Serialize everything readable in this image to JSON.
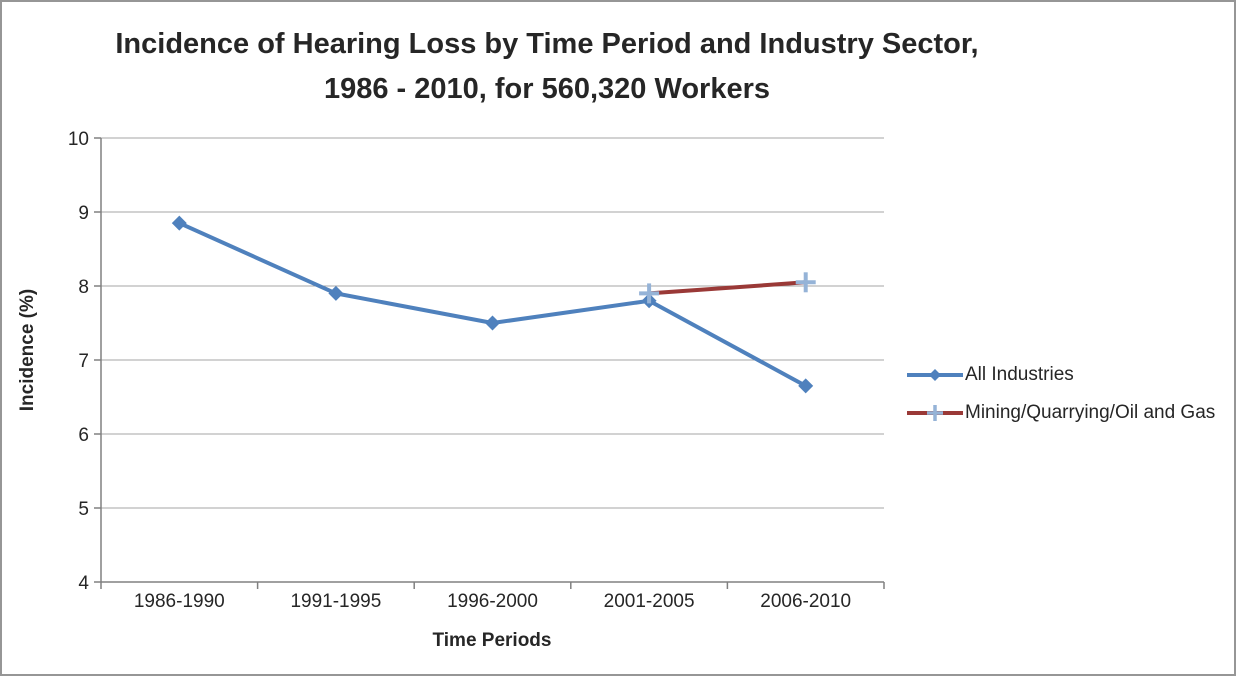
{
  "title": {
    "line1": "Incidence of Hearing Loss by Time Period and Industry Sector,",
    "line2": "1986 - 2010, for 560,320 Workers"
  },
  "axes": {
    "x_title": "Time Periods",
    "y_title": "Incidence (%)"
  },
  "chart_data": {
    "type": "line",
    "title": "Incidence of Hearing Loss by Time Period and Industry Sector, 1986 - 2010, for 560,320 Workers",
    "xlabel": "Time Periods",
    "ylabel": "Incidence (%)",
    "categories": [
      "1986-1990",
      "1991-1995",
      "1996-2000",
      "2001-2005",
      "2006-2010"
    ],
    "series": [
      {
        "name": "All Industries",
        "values": [
          8.85,
          7.9,
          7.5,
          7.8,
          6.65
        ],
        "color": "#4F81BD",
        "marker": "diamond",
        "marker_color": "#4F81BD"
      },
      {
        "name": "Mining/Quarrying/Oil and Gas",
        "values": [
          null,
          null,
          null,
          7.9,
          8.05
        ],
        "color": "#9A3937",
        "marker": "plus",
        "marker_color": "#95B3D7"
      }
    ],
    "ylim": [
      4,
      10
    ],
    "ytick_step": 1,
    "grid": "horizontal",
    "legend_position": "right",
    "colors": {
      "gridline": "#A6A6A6",
      "axis": "#808080",
      "tick_label": "#262626"
    }
  }
}
